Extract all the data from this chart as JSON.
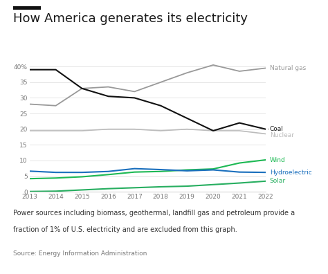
{
  "years": [
    2013,
    2014,
    2015,
    2016,
    2017,
    2018,
    2019,
    2020,
    2021,
    2022
  ],
  "natural_gas": [
    28,
    27.5,
    33,
    33.5,
    32,
    35,
    38,
    40.5,
    38.5,
    39.5
  ],
  "coal": [
    39,
    39,
    33,
    30.5,
    30,
    27.5,
    23.5,
    19.5,
    22,
    20
  ],
  "nuclear": [
    19.5,
    19.5,
    19.5,
    20,
    20,
    19.5,
    20,
    19.5,
    19.5,
    18.5
  ],
  "wind": [
    4.2,
    4.4,
    4.8,
    5.5,
    6.3,
    6.5,
    7.0,
    7.3,
    9.2,
    10.2
  ],
  "hydroelectric": [
    6.6,
    6.2,
    6.2,
    6.5,
    7.4,
    7.1,
    6.7,
    7.0,
    6.3,
    6.2
  ],
  "solar": [
    0.1,
    0.2,
    0.6,
    1.0,
    1.3,
    1.6,
    1.8,
    2.3,
    2.8,
    3.4
  ],
  "colors": {
    "natural_gas": "#999999",
    "coal": "#111111",
    "nuclear": "#bbbbbb",
    "wind": "#1db954",
    "hydroelectric": "#1a6fbd",
    "solar": "#27ae60"
  },
  "title": "How America generates its electricity",
  "ylim": [
    0,
    42
  ],
  "yticks": [
    0,
    5,
    10,
    15,
    20,
    25,
    30,
    35,
    40
  ],
  "ytick_labels": [
    "0",
    "5",
    "10",
    "15",
    "20",
    "25",
    "30",
    "35",
    "40%"
  ],
  "footnote1": "Power sources including biomass, geothermal, landfill gas and petroleum provide a",
  "footnote2": "fraction of 1% of U.S. electricity and are excluded from this graph.",
  "source": "Source: Energy Information Administration",
  "background_color": "#ffffff"
}
